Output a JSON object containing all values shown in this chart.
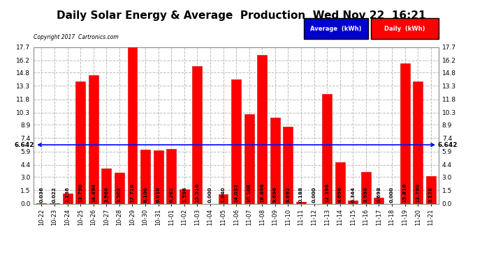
{
  "title": "Daily Solar Energy & Average  Production  Wed Nov 22  16:21",
  "copyright": "Copyright 2017  Cartronics.com",
  "categories": [
    "10-22",
    "10-23",
    "10-24",
    "10-25",
    "10-26",
    "10-27",
    "10-28",
    "10-29",
    "10-30",
    "10-31",
    "11-01",
    "11-02",
    "11-03",
    "11-04",
    "11-05",
    "11-06",
    "11-07",
    "11-08",
    "11-09",
    "11-10",
    "11-11",
    "11-12",
    "11-13",
    "11-14",
    "11-15",
    "11-16",
    "11-17",
    "11-18",
    "11-19",
    "11-20",
    "11-21"
  ],
  "values": [
    0.036,
    0.022,
    1.136,
    13.79,
    14.494,
    3.966,
    3.502,
    17.71,
    6.106,
    6.01,
    6.202,
    1.596,
    15.516,
    0.0,
    1.04,
    14.032,
    10.108,
    16.808,
    9.696,
    8.692,
    0.188,
    0.0,
    12.396,
    4.696,
    0.344,
    3.598,
    0.698,
    0.0,
    15.816,
    13.79,
    3.128
  ],
  "bar_color": "#FF0000",
  "bar_edge_color": "#CC0000",
  "average_value": 6.642,
  "average_line_color": "#0000FF",
  "ylim": [
    0.0,
    17.7
  ],
  "yticks": [
    0.0,
    1.5,
    3.0,
    4.4,
    5.9,
    7.4,
    8.9,
    10.3,
    11.8,
    13.3,
    14.8,
    16.2,
    17.7
  ],
  "background_color": "#FFFFFF",
  "grid_color": "#BBBBBB",
  "title_fontsize": 11,
  "bar_text_fontsize": 5.2,
  "legend_avg_color": "#0000CC",
  "legend_daily_color": "#FF0000",
  "legend_avg_label": "Average  (kWh)",
  "legend_daily_label": "Daily  (kWh)"
}
